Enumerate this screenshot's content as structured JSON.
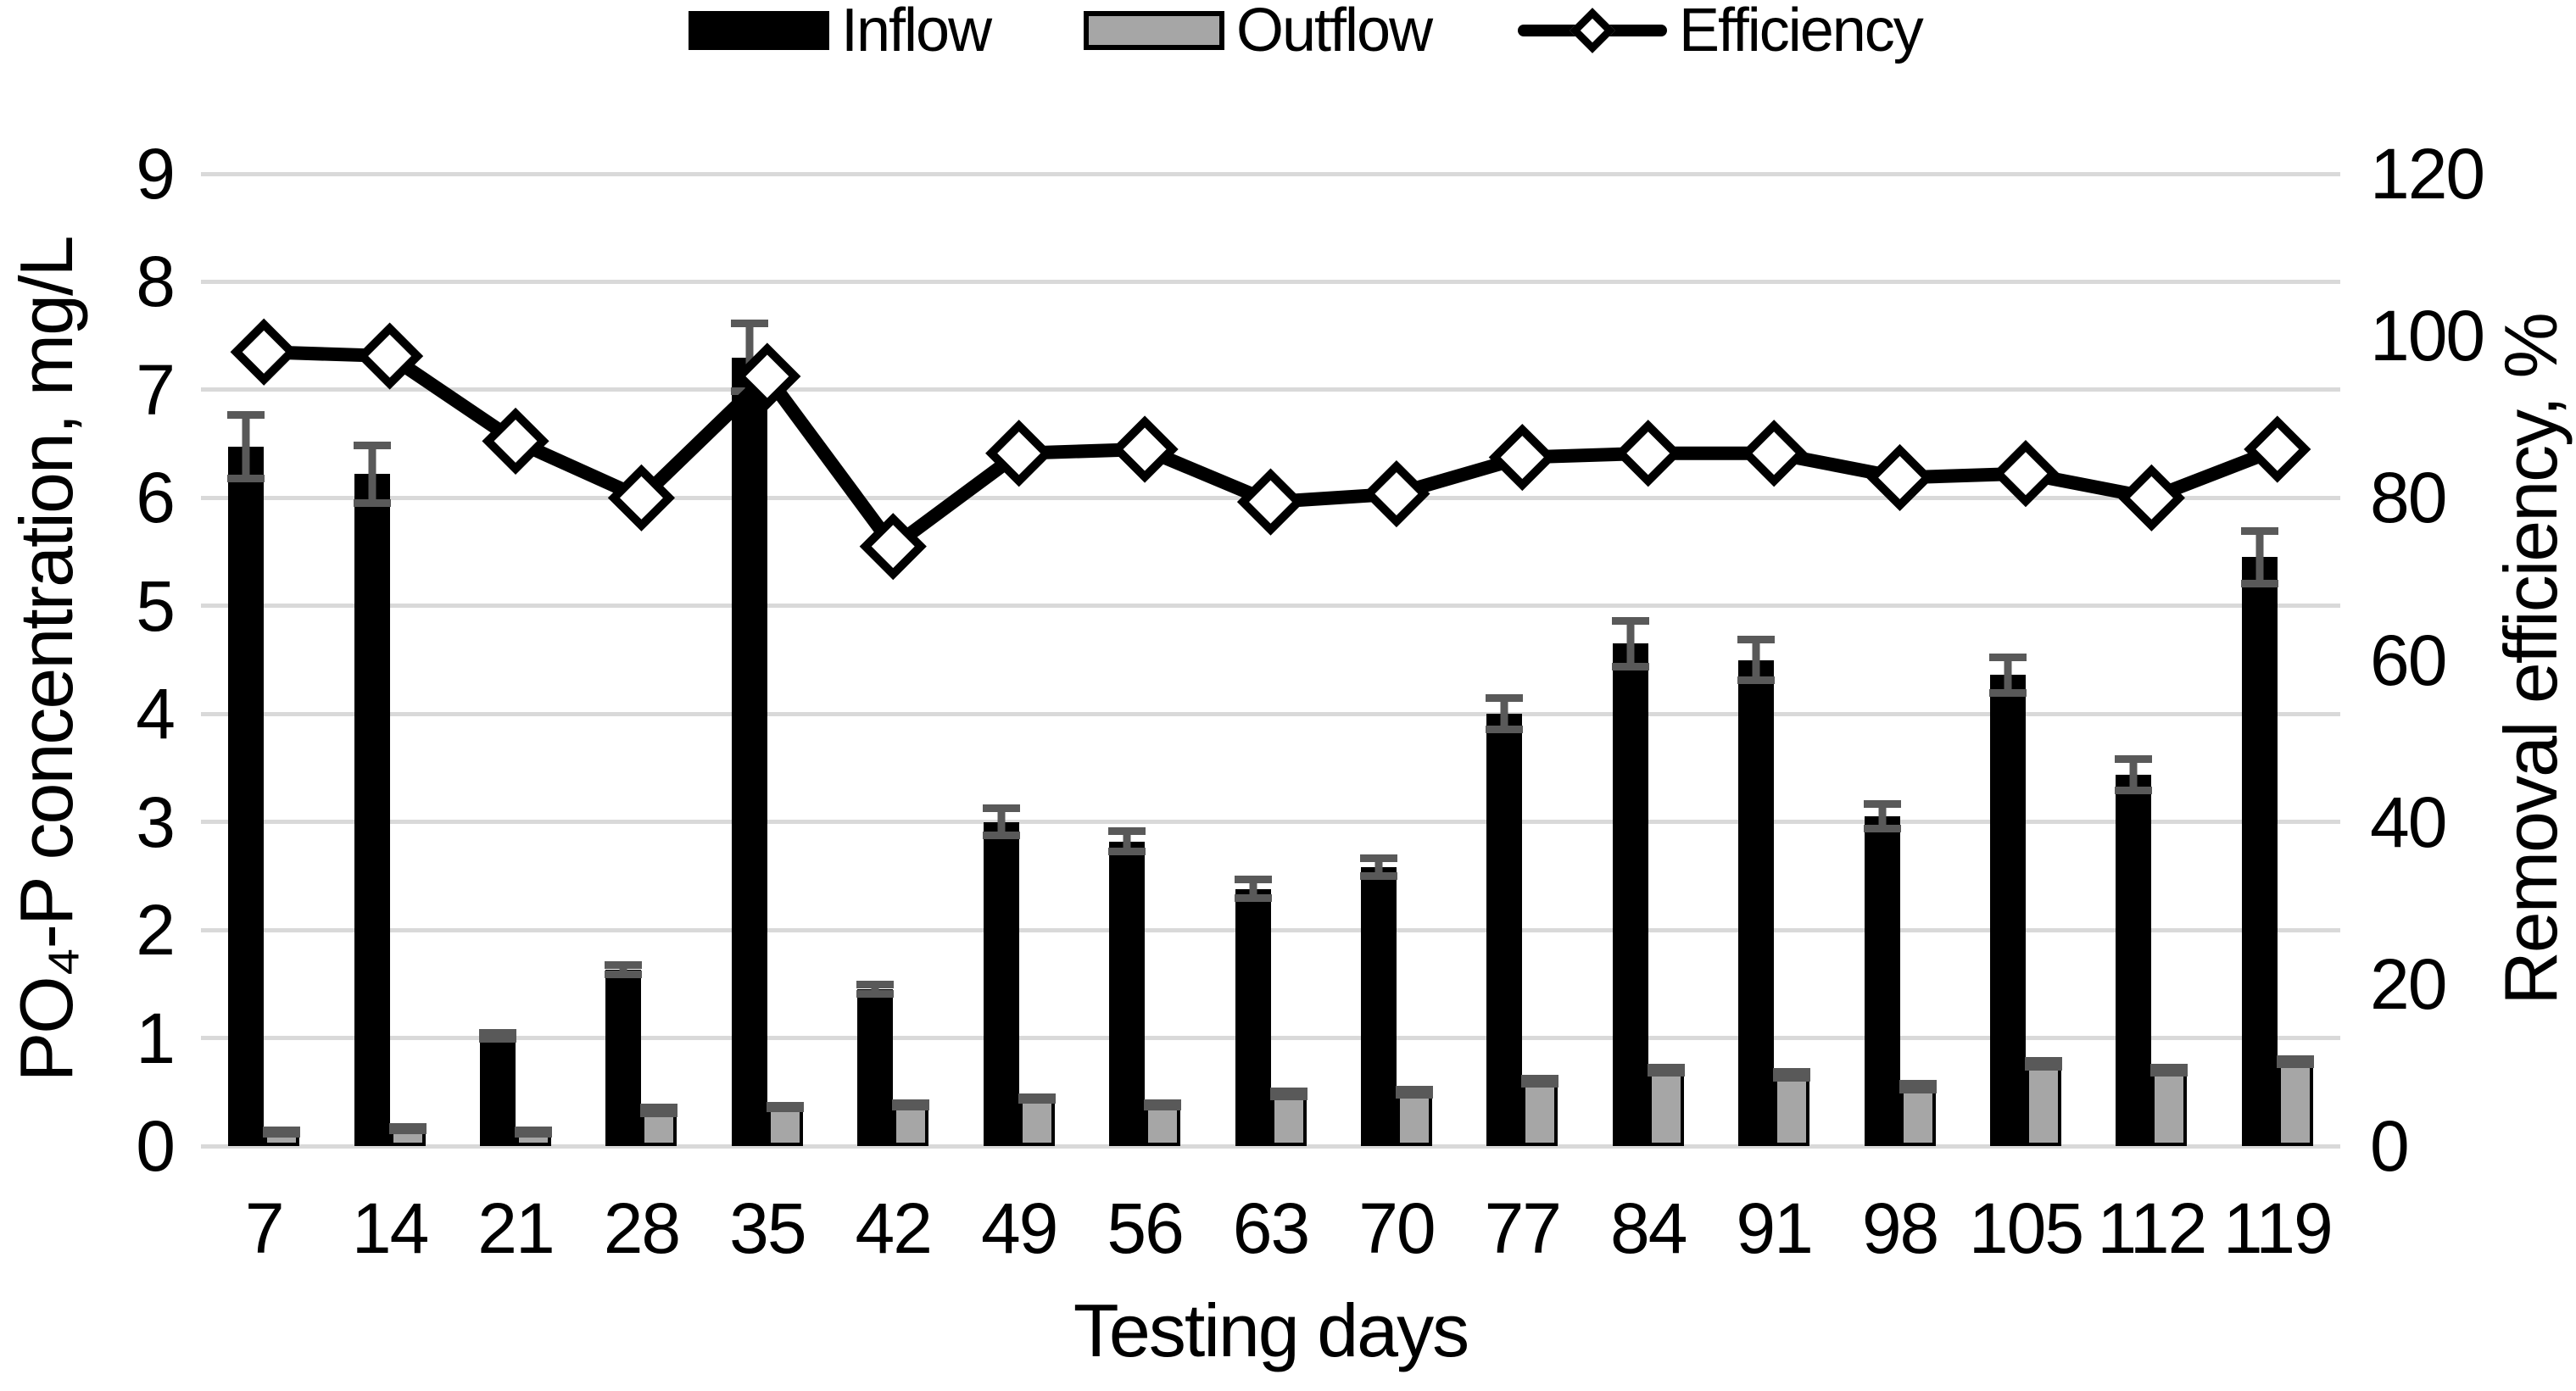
{
  "chart_data": {
    "type": "combo-bar-line",
    "title": "",
    "xlabel": "Testing days",
    "ylabel_left": "PO₄-P concentration, mg/L",
    "ylabel_right": "Removal efficiency, %",
    "categories": [
      7,
      14,
      21,
      28,
      35,
      42,
      49,
      56,
      63,
      70,
      77,
      84,
      91,
      98,
      105,
      112,
      119
    ],
    "ylim_left": [
      0,
      9
    ],
    "yticks_left": [
      0,
      1,
      2,
      3,
      4,
      5,
      6,
      7,
      8,
      9
    ],
    "ylim_right": [
      0,
      120
    ],
    "yticks_right": [
      0,
      20,
      40,
      60,
      80,
      100,
      120
    ],
    "grid": "horizontal-major",
    "legend_position": "top-center",
    "series": [
      {
        "name": "Inflow",
        "type": "bar",
        "axis": "left",
        "color": "#000000",
        "values": [
          6.47,
          6.22,
          1.02,
          1.63,
          7.3,
          1.45,
          3.0,
          2.82,
          2.38,
          2.58,
          4.0,
          4.65,
          4.5,
          3.05,
          4.36,
          3.44,
          5.45
        ],
        "errors": [
          0.33,
          0.3,
          0.06,
          0.08,
          0.35,
          0.08,
          0.16,
          0.13,
          0.12,
          0.12,
          0.18,
          0.25,
          0.22,
          0.15,
          0.2,
          0.18,
          0.28
        ]
      },
      {
        "name": "Outflow",
        "type": "bar",
        "axis": "left",
        "color": "#a6a6a6",
        "border_color": "#000000",
        "values": [
          0.13,
          0.16,
          0.13,
          0.33,
          0.36,
          0.38,
          0.44,
          0.38,
          0.48,
          0.5,
          0.6,
          0.7,
          0.66,
          0.55,
          0.76,
          0.7,
          0.78
        ],
        "errors": [
          0.05,
          0.05,
          0.05,
          0.06,
          0.05,
          0.05,
          0.05,
          0.05,
          0.06,
          0.06,
          0.06,
          0.06,
          0.06,
          0.06,
          0.06,
          0.06,
          0.06
        ]
      },
      {
        "name": "Efficiency",
        "type": "line",
        "axis": "right",
        "color": "#000000",
        "marker": "diamond",
        "marker_fill": "#ffffff",
        "values": [
          98,
          97.5,
          87,
          80,
          95,
          74,
          85.5,
          86,
          79.5,
          80.5,
          85,
          85.5,
          85.5,
          82.5,
          83,
          80,
          86
        ]
      }
    ]
  },
  "colors": {
    "background": "#ffffff",
    "gridline": "#d9d9d9",
    "error_bar": "#595959",
    "text": "#000000"
  }
}
